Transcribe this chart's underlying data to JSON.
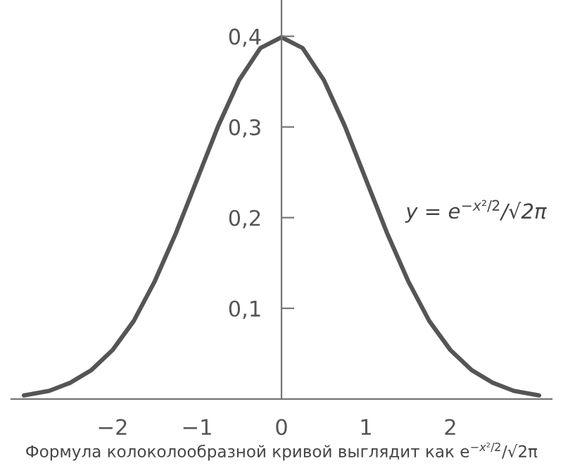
{
  "chart_data": {
    "type": "line",
    "x": [
      -3.05,
      -2.75,
      -2.5,
      -2.25,
      -2,
      -1.75,
      -1.5,
      -1.25,
      -1,
      -0.75,
      -0.5,
      -0.25,
      0,
      0.25,
      0.5,
      0.75,
      1,
      1.25,
      1.5,
      1.75,
      2,
      2.25,
      2.5,
      2.75,
      3.05
    ],
    "series": [
      {
        "color": "#555555",
        "values": [
          0.004,
          0.009,
          0.018,
          0.032,
          0.054,
          0.086,
          0.13,
          0.183,
          0.242,
          0.301,
          0.352,
          0.387,
          0.399,
          0.387,
          0.352,
          0.301,
          0.242,
          0.183,
          0.13,
          0.086,
          0.054,
          0.032,
          0.018,
          0.009,
          0.004
        ]
      }
    ],
    "xlim": [
      -3.2,
      3.2
    ],
    "ylim": [
      0,
      0.44
    ],
    "xticks": [
      {
        "value": -2,
        "label": "−2"
      },
      {
        "value": -1,
        "label": "−1"
      },
      0,
      1,
      2
    ],
    "yticks": [
      {
        "value": 0.1,
        "label": "0,1"
      },
      {
        "value": 0.2,
        "label": "0,2"
      },
      {
        "value": 0.3,
        "label": "0,3"
      },
      {
        "value": 0.4,
        "label": "0,4"
      }
    ],
    "grid": false,
    "marker": "none",
    "line_style": "solid",
    "annotations": [
      "y = e$^{−x²/2}$/√2π",
      "Формула колоколообразной кривой выглядит как e$^{−x²/2}$/√2π"
    ]
  }
}
